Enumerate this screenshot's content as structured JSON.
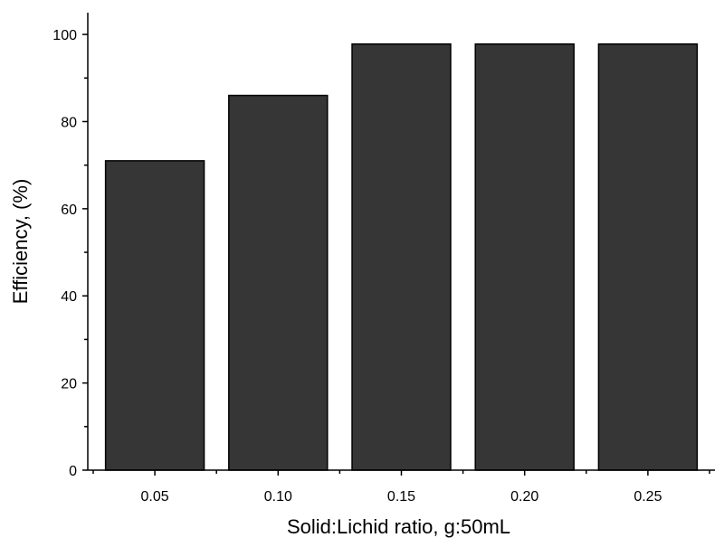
{
  "chart_data": {
    "type": "bar",
    "title": "",
    "xlabel": "Solid:Lichid ratio, g:50mL",
    "ylabel": "Efficiency, (%)",
    "categories": [
      "0.05",
      "0.10",
      "0.15",
      "0.20",
      "0.25"
    ],
    "values": [
      71,
      86,
      97.8,
      97.8,
      97.8
    ],
    "ylim": [
      0,
      105
    ],
    "yticks": [
      0,
      20,
      40,
      60,
      80,
      100
    ],
    "grid": false,
    "legend": "none",
    "bar_color": "#363636",
    "bar_edge_color": "#000000"
  }
}
